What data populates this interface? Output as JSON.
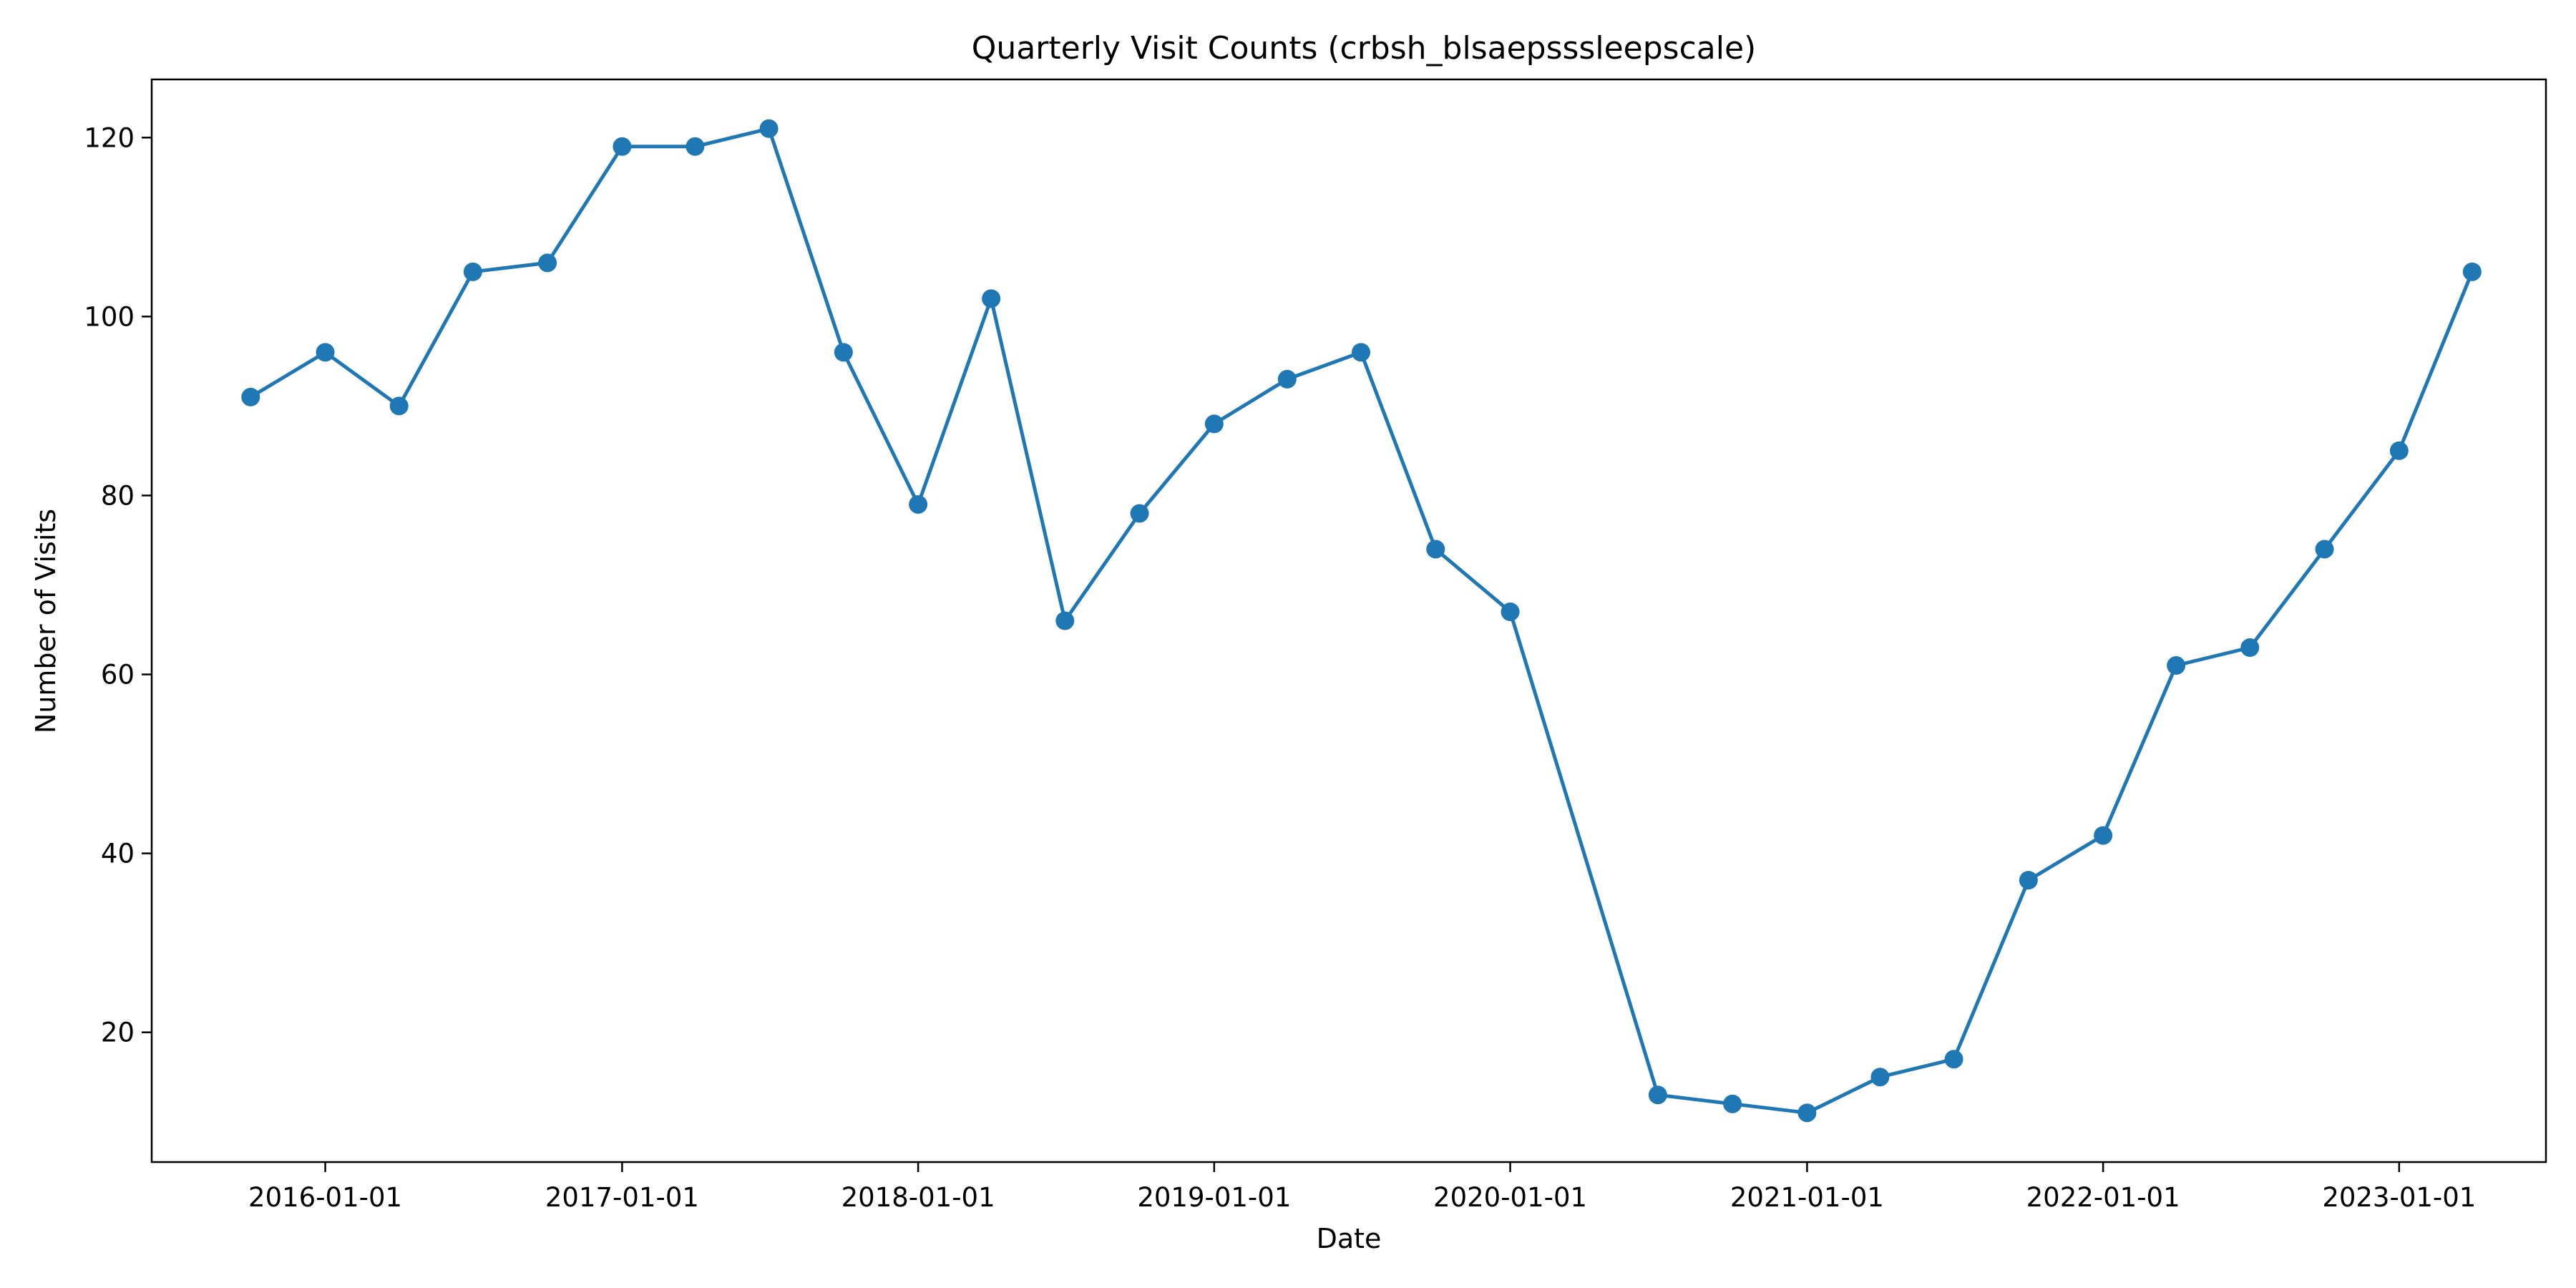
{
  "chart_data": {
    "type": "line",
    "title": "Quarterly Visit Counts (crbsh_blsaepsssleepscale)",
    "xlabel": "Date",
    "ylabel": "Number of Visits",
    "x_ticks": [
      "2016-01-01",
      "2017-01-01",
      "2018-01-01",
      "2019-01-01",
      "2020-01-01",
      "2021-01-01",
      "2022-01-01",
      "2023-01-01"
    ],
    "y_ticks": [
      20,
      40,
      60,
      80,
      100,
      120
    ],
    "xlim": [
      "2015-06-01",
      "2023-07-01"
    ],
    "ylim": [
      5.5,
      126.5
    ],
    "grid": false,
    "legend": "none",
    "color": "#1f77b4",
    "x": [
      "2015-10-01",
      "2016-01-01",
      "2016-04-01",
      "2016-07-01",
      "2016-10-01",
      "2017-01-01",
      "2017-04-01",
      "2017-07-01",
      "2017-10-01",
      "2018-01-01",
      "2018-04-01",
      "2018-07-01",
      "2018-10-01",
      "2019-01-01",
      "2019-04-01",
      "2019-07-01",
      "2019-10-01",
      "2020-01-01",
      "2020-07-01",
      "2020-10-01",
      "2021-01-01",
      "2021-04-01",
      "2021-07-01",
      "2021-10-01",
      "2022-01-01",
      "2022-04-01",
      "2022-07-01",
      "2022-10-01",
      "2023-01-01",
      "2023-04-01"
    ],
    "y": [
      91,
      96,
      90,
      105,
      106,
      119,
      119,
      121,
      96,
      79,
      102,
      66,
      78,
      88,
      93,
      96,
      74,
      67,
      13,
      12,
      11,
      15,
      17,
      37,
      42,
      61,
      63,
      74,
      85,
      105
    ]
  }
}
